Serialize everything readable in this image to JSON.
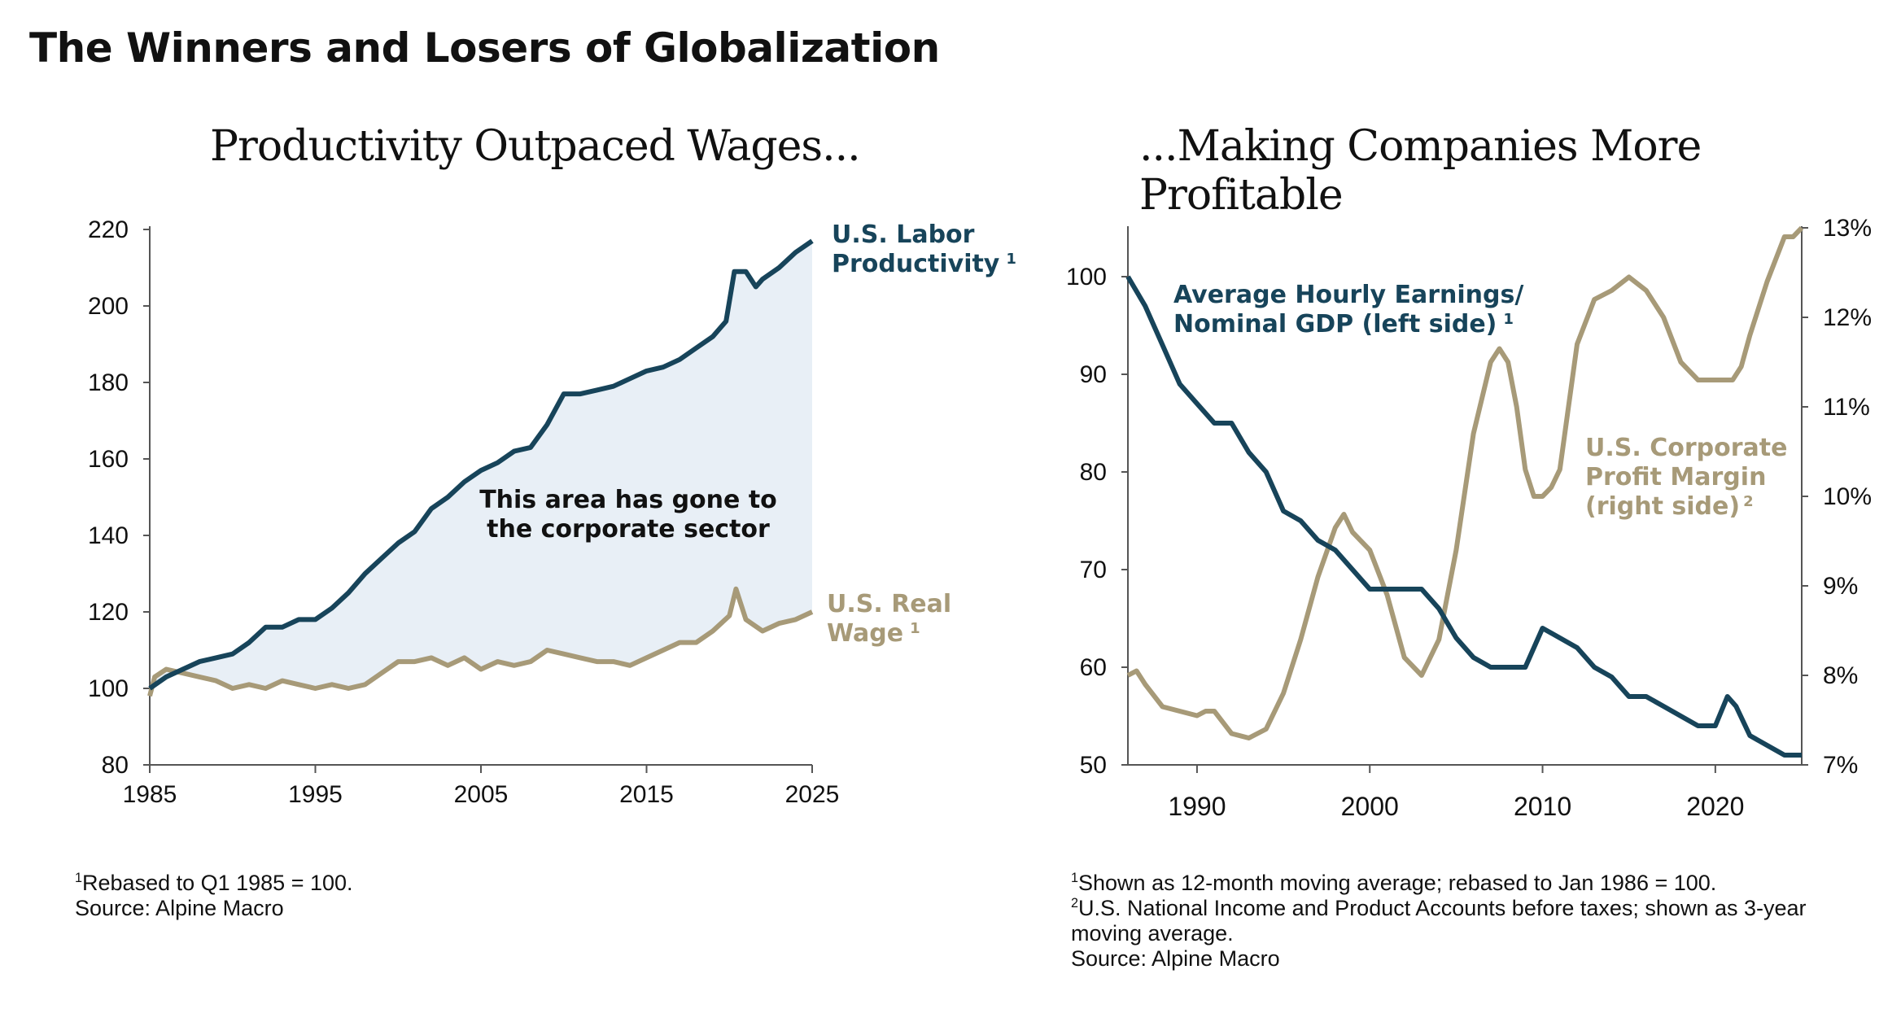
{
  "main_title": "The Winners and Losers of Globalization",
  "colors": {
    "productivity": "#17445a",
    "wage": "#a79a78",
    "fill": "#e8eff6",
    "axis": "#555555"
  },
  "chart_data": [
    {
      "type": "line",
      "title": "Productivity Outpaced Wages...",
      "xlim": [
        1985,
        2025
      ],
      "ylim": [
        80,
        220
      ],
      "x_ticks": [
        "1985",
        "1995",
        "2005",
        "2015",
        "2025"
      ],
      "y_ticks": [
        "80",
        "100",
        "120",
        "140",
        "160",
        "180",
        "200",
        "220"
      ],
      "annotation": [
        "This area has gone to",
        "the corporate sector"
      ],
      "series": [
        {
          "name": "U.S. Labor Productivity",
          "label_lines": [
            "U.S. Labor",
            "Productivity"
          ],
          "label_note": "1",
          "x": [
            1985,
            1986,
            1987,
            1988,
            1989,
            1990,
            1991,
            1992,
            1993,
            1994,
            1995,
            1996,
            1997,
            1998,
            1999,
            2000,
            2001,
            2002,
            2003,
            2004,
            2005,
            2006,
            2007,
            2008,
            2009,
            2010,
            2011,
            2012,
            2013,
            2014,
            2015,
            2016,
            2017,
            2018,
            2019,
            2019.8,
            2020.3,
            2021,
            2021.6,
            2022,
            2023,
            2024,
            2025
          ],
          "values": [
            100,
            103,
            105,
            107,
            108,
            109,
            112,
            116,
            116,
            118,
            118,
            121,
            125,
            130,
            134,
            138,
            141,
            147,
            150,
            154,
            157,
            159,
            162,
            163,
            169,
            177,
            177,
            178,
            179,
            181,
            183,
            184,
            186,
            189,
            192,
            196,
            209,
            209,
            205,
            207,
            210,
            214,
            217
          ]
        },
        {
          "name": "U.S. Real Wage",
          "label_lines": [
            "U.S. Real",
            "Wage"
          ],
          "label_note": "1",
          "x": [
            1985,
            1985.3,
            1986,
            1987,
            1988,
            1989,
            1990,
            1991,
            1992,
            1993,
            1994,
            1995,
            1996,
            1997,
            1998,
            1999,
            2000,
            2001,
            2002,
            2003,
            2004,
            2005,
            2006,
            2007,
            2008,
            2009,
            2010,
            2011,
            2012,
            2013,
            2014,
            2015,
            2016,
            2017,
            2018,
            2019,
            2020,
            2020.4,
            2021,
            2022,
            2023,
            2024,
            2025
          ],
          "values": [
            98,
            103,
            105,
            104,
            103,
            102,
            100,
            101,
            100,
            102,
            101,
            100,
            101,
            100,
            101,
            104,
            107,
            107,
            108,
            106,
            108,
            105,
            107,
            106,
            107,
            110,
            109,
            108,
            107,
            107,
            106,
            108,
            110,
            112,
            112,
            115,
            119,
            126,
            118,
            115,
            117,
            118,
            120
          ]
        }
      ],
      "footnotes": [
        "Rebased to Q1 1985 = 100.",
        "Source: Alpine Macro"
      ]
    },
    {
      "type": "line",
      "title": "...Making Companies More Profitable",
      "xlim": [
        1986,
        2025
      ],
      "ylim_left": [
        50,
        105
      ],
      "ylim_right": [
        7,
        13
      ],
      "x_ticks": [
        "1990",
        "2000",
        "2010",
        "2020"
      ],
      "y_ticks_left": [
        "50",
        "60",
        "70",
        "80",
        "90",
        "100"
      ],
      "y_ticks_right": [
        "7%",
        "8%",
        "9%",
        "10%",
        "11%",
        "12%",
        "13%"
      ],
      "series": [
        {
          "name": "Average Hourly Earnings/ Nominal GDP (left side)",
          "label_lines": [
            "Average Hourly Earnings/",
            "Nominal GDP (left side)"
          ],
          "label_note": "1",
          "axis": "left",
          "x": [
            1986,
            1987,
            1988,
            1989,
            1990,
            1991,
            1992,
            1993,
            1994,
            1995,
            1996,
            1997,
            1998,
            1999,
            2000,
            2001,
            2002,
            2003,
            2004,
            2005,
            2006,
            2007,
            2008,
            2009,
            2010,
            2011,
            2012,
            2013,
            2014,
            2015,
            2016,
            2017,
            2018,
            2019,
            2020,
            2020.7,
            2021.2,
            2022,
            2023,
            2024,
            2025
          ],
          "values": [
            100,
            97,
            93,
            89,
            87,
            85,
            85,
            82,
            80,
            76,
            75,
            73,
            72,
            70,
            68,
            68,
            68,
            68,
            66,
            63,
            61,
            60,
            60,
            60,
            64,
            63,
            62,
            60,
            59,
            57,
            57,
            56,
            55,
            54,
            54,
            57,
            56,
            53,
            52,
            51,
            51
          ]
        },
        {
          "name": "U.S. Corporate Profit Margin (right side)",
          "label_lines": [
            "U.S. Corporate",
            "Profit Margin",
            "(right side)"
          ],
          "label_note": "2",
          "axis": "right",
          "x": [
            1986,
            1986.5,
            1987,
            1988,
            1989,
            1990,
            1990.5,
            1991,
            1992,
            1993,
            1994,
            1995,
            1996,
            1997,
            1998,
            1998.5,
            1999,
            2000,
            2001,
            2002,
            2003,
            2004,
            2005,
            2006,
            2007,
            2007.5,
            2008,
            2008.5,
            2009,
            2009.5,
            2010,
            2010.5,
            2011,
            2012,
            2013,
            2014,
            2015,
            2016,
            2017,
            2018,
            2019,
            2020,
            2021,
            2021.5,
            2022,
            2023,
            2024,
            2024.5,
            2025
          ],
          "values": [
            8.0,
            8.05,
            7.9,
            7.65,
            7.6,
            7.55,
            7.6,
            7.6,
            7.35,
            7.3,
            7.4,
            7.8,
            8.4,
            9.1,
            9.65,
            9.8,
            9.6,
            9.4,
            8.9,
            8.2,
            8.0,
            8.4,
            9.4,
            10.7,
            11.5,
            11.65,
            11.5,
            11.0,
            10.3,
            10.0,
            10.0,
            10.1,
            10.3,
            11.7,
            12.2,
            12.3,
            12.45,
            12.3,
            12.0,
            11.5,
            11.3,
            11.3,
            11.3,
            11.45,
            11.8,
            12.4,
            12.9,
            12.9,
            13.0
          ]
        }
      ],
      "footnotes": [
        "Shown as 12-month moving average; rebased to Jan 1986 = 100.",
        "U.S. National Income and Product Accounts before taxes; shown as 3-year moving average.",
        "Source: Alpine Macro"
      ]
    }
  ]
}
